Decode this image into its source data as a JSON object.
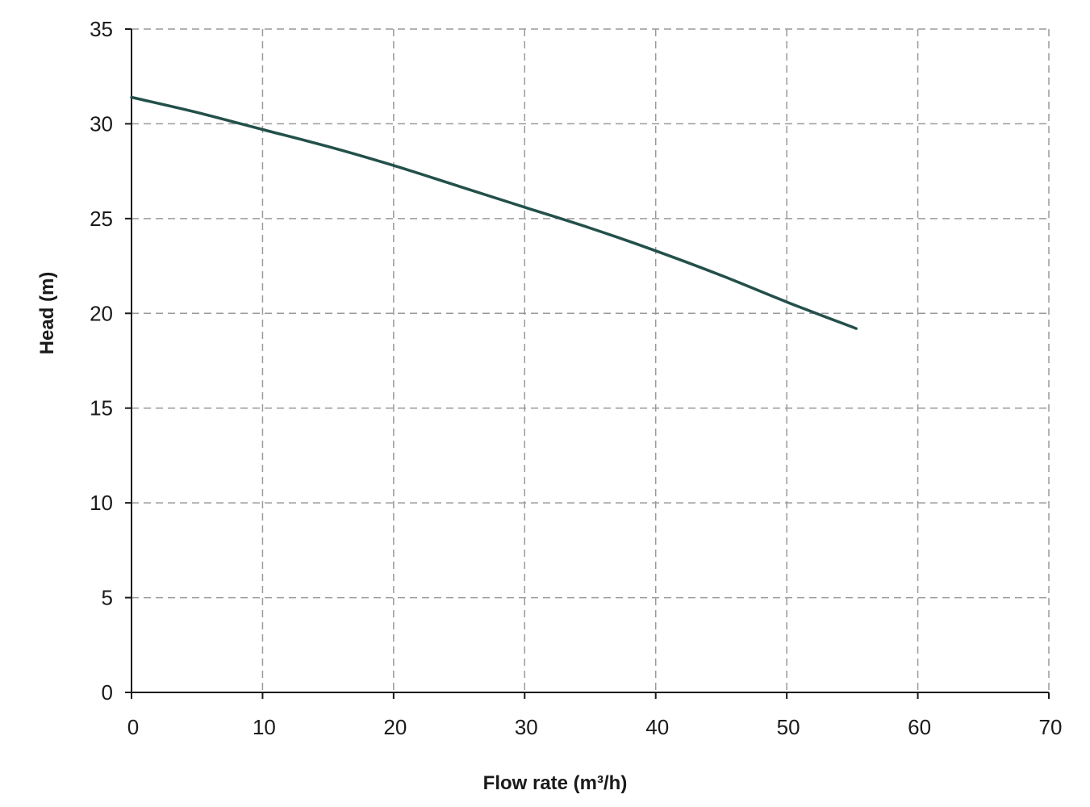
{
  "chart_data": {
    "type": "line",
    "title": "",
    "xlabel": "Flow rate (m³/h)",
    "ylabel": "Head (m)",
    "xlim": [
      0,
      70
    ],
    "ylim": [
      0,
      35
    ],
    "x_ticks": [
      0,
      10,
      20,
      30,
      40,
      50,
      60,
      70
    ],
    "y_ticks": [
      0,
      5,
      10,
      15,
      20,
      25,
      30,
      35
    ],
    "grid": true,
    "series": [
      {
        "color": "#23504a",
        "x": [
          0,
          5,
          10,
          15,
          20,
          25,
          30,
          35,
          40,
          45,
          50,
          55.3
        ],
        "y": [
          31.4,
          30.6,
          29.7,
          28.8,
          27.8,
          26.7,
          25.6,
          24.5,
          23.3,
          22.0,
          20.6,
          19.2
        ]
      }
    ]
  }
}
